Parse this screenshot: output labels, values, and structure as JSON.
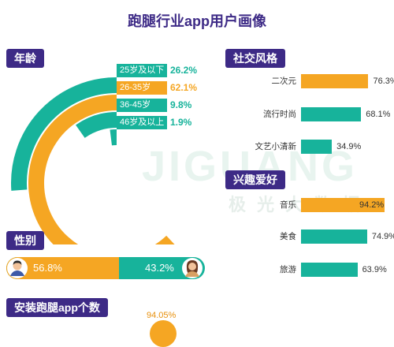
{
  "title": "跑腿行业app用户画像",
  "sections": {
    "age": "年龄",
    "social": "社交风格",
    "interests": "兴趣爱好",
    "gender": "性别",
    "install": "安装跑腿app个数"
  },
  "watermark": {
    "brand": "JIGUANG",
    "cn": "极 光 大 数 据"
  },
  "colors": {
    "teal": "#17b39b",
    "orange": "#f5a623",
    "purple": "#3d2a86"
  },
  "chart_data": [
    {
      "type": "pie",
      "categories": [
        "25岁及以下",
        "26-35岁",
        "36-45岁",
        "46岁及以上"
      ],
      "values": [
        26.2,
        62.1,
        9.8,
        1.9
      ],
      "value_labels": [
        "26.2%",
        "62.1%",
        "9.8%",
        "1.9%"
      ],
      "title": "年龄"
    },
    {
      "type": "bar",
      "categories": [
        "二次元",
        "流行时尚",
        "文艺小清新"
      ],
      "values": [
        76.3,
        68.1,
        34.9
      ],
      "value_labels": [
        "76.3%",
        "68.1%",
        "34.9%"
      ],
      "title": "社交风格",
      "xlim": [
        0,
        100
      ]
    },
    {
      "type": "bar",
      "categories": [
        "音乐",
        "美食",
        "旅游"
      ],
      "values": [
        94.2,
        74.9,
        63.9
      ],
      "value_labels": [
        "94.2%",
        "74.9%",
        "63.9%"
      ],
      "title": "兴趣爱好",
      "xlim": [
        0,
        100
      ]
    },
    {
      "type": "bar",
      "categories": [
        "男",
        "女"
      ],
      "values": [
        56.8,
        43.2
      ],
      "value_labels": [
        "56.8%",
        "43.2%"
      ],
      "title": "性别"
    },
    {
      "type": "bar",
      "values": [
        94.05
      ],
      "value_labels": [
        "94.05%"
      ],
      "title": "安装跑腿app个数"
    }
  ]
}
